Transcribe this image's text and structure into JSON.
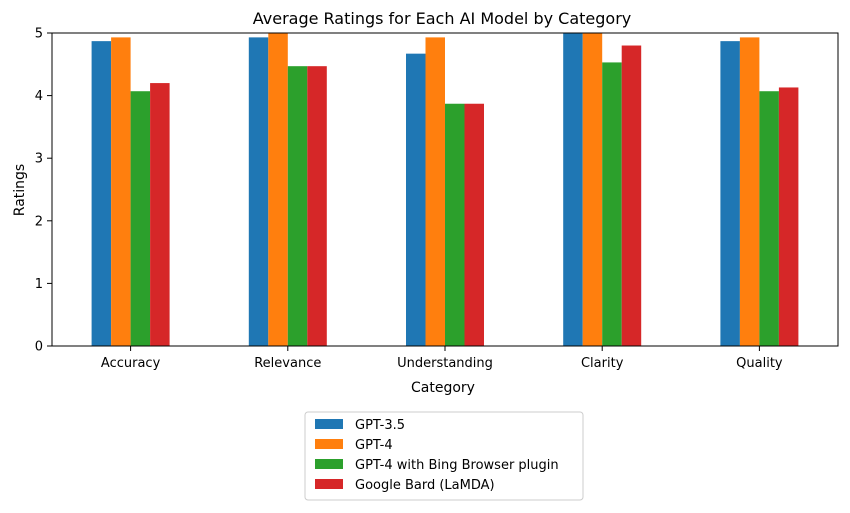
{
  "chart_data": {
    "type": "bar",
    "title": "Average Ratings for Each AI Model by Category",
    "xlabel": "Category",
    "ylabel": "Ratings",
    "ylim": [
      0,
      5
    ],
    "yticks": [
      0,
      1,
      2,
      3,
      4,
      5
    ],
    "categories": [
      "Accuracy",
      "Relevance",
      "Understanding",
      "Clarity",
      "Quality"
    ],
    "series": [
      {
        "name": "GPT-3.5",
        "color": "#1f77b4",
        "values": [
          4.87,
          4.93,
          4.67,
          5.0,
          4.87
        ]
      },
      {
        "name": "GPT-4",
        "color": "#ff7f0e",
        "values": [
          4.93,
          5.0,
          4.93,
          5.0,
          4.93
        ]
      },
      {
        "name": "GPT-4 with Bing Browser plugin",
        "color": "#2ca02c",
        "values": [
          4.07,
          4.47,
          3.87,
          4.53,
          4.07
        ]
      },
      {
        "name": "Google Bard (LaMDA)",
        "color": "#d62728",
        "values": [
          4.2,
          4.47,
          3.87,
          4.8,
          4.13
        ]
      }
    ],
    "legend_position": "bottom-center",
    "grid": false
  }
}
